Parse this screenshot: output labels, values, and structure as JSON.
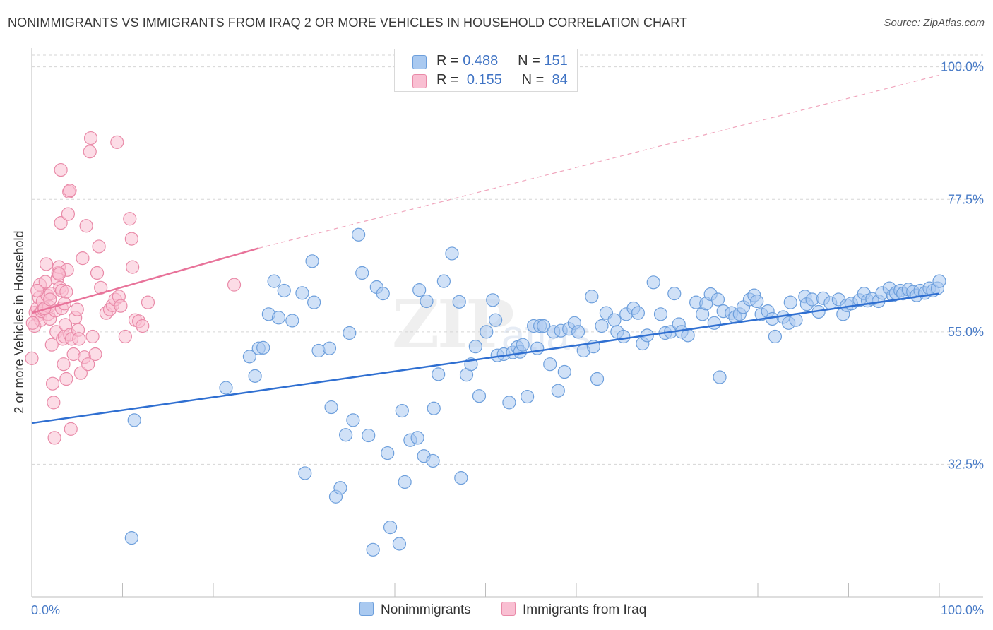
{
  "title": "NONIMMIGRANTS VS IMMIGRANTS FROM IRAQ 2 OR MORE VEHICLES IN HOUSEHOLD CORRELATION CHART",
  "source": "Source: ZipAtlas.com",
  "watermark": "ZIP",
  "watermark2": "atlas",
  "legend_top": {
    "rows": [
      {
        "r_label": "R =",
        "r_value": "0.488",
        "n_label": "N =",
        "n_value": "151",
        "color": "#a9c9f0",
        "border": "#6d9fdc"
      },
      {
        "r_label": "R =",
        "r_value": "0.155",
        "n_label": "N =",
        "n_value": "84",
        "color": "#f9bfd2",
        "border": "#e98aa8"
      }
    ]
  },
  "legend_bottom": [
    {
      "label": "Nonimmigrants",
      "color": "#a9c9f0",
      "border": "#6d9fdc"
    },
    {
      "label": "Immigrants from Iraq",
      "color": "#f9bfd2",
      "border": "#e98aa8"
    }
  ],
  "chart_data": {
    "type": "scatter",
    "title": "NONIMMIGRANTS VS IMMIGRANTS FROM IRAQ 2 OR MORE VEHICLES IN HOUSEHOLD CORRELATION CHART",
    "xlabel": "",
    "ylabel": "2 or more Vehicles in Household",
    "xlim": [
      0,
      100
    ],
    "ylim": [
      10,
      102
    ],
    "x_tick_labels": [
      "0.0%",
      "100.0%"
    ],
    "y_ticks": [
      32.5,
      55.0,
      77.5,
      100.0
    ],
    "y_tick_labels": [
      "32.5%",
      "55.0%",
      "77.5%",
      "100.0%"
    ],
    "grid": "horizontal dashed",
    "legend": "top-center",
    "series": [
      {
        "name": "Nonimmigrants",
        "color": "#6d9fdc",
        "fill": "#a9c9f0",
        "trend": {
          "x0": 0,
          "y0": 39.5,
          "x1": 100,
          "y1": 61.5,
          "style": "solid",
          "color": "#2f6fd1"
        },
        "points": [
          [
            11.3,
            40.0
          ],
          [
            11.0,
            20.0
          ],
          [
            21.4,
            45.5
          ],
          [
            24.0,
            50.8
          ],
          [
            25.0,
            52.2
          ],
          [
            24.6,
            47.5
          ],
          [
            25.5,
            52.3
          ],
          [
            26.1,
            58.0
          ],
          [
            26.7,
            63.6
          ],
          [
            27.2,
            57.4
          ],
          [
            27.8,
            62.0
          ],
          [
            28.7,
            56.9
          ],
          [
            29.8,
            61.6
          ],
          [
            30.1,
            31.0
          ],
          [
            30.9,
            67.0
          ],
          [
            31.1,
            60.0
          ],
          [
            31.6,
            51.8
          ],
          [
            32.8,
            52.2
          ],
          [
            33.0,
            42.2
          ],
          [
            33.5,
            27.0
          ],
          [
            34.0,
            28.5
          ],
          [
            34.6,
            37.5
          ],
          [
            35.0,
            54.8
          ],
          [
            35.4,
            40.0
          ],
          [
            36.0,
            71.5
          ],
          [
            36.4,
            65.0
          ],
          [
            37.1,
            37.4
          ],
          [
            37.6,
            18.0
          ],
          [
            38.0,
            62.6
          ],
          [
            38.7,
            61.5
          ],
          [
            39.2,
            34.4
          ],
          [
            39.5,
            21.8
          ],
          [
            40.5,
            19.0
          ],
          [
            40.8,
            41.6
          ],
          [
            41.1,
            29.5
          ],
          [
            41.7,
            36.6
          ],
          [
            42.5,
            37.0
          ],
          [
            42.7,
            62.1
          ],
          [
            43.2,
            33.9
          ],
          [
            43.5,
            60.2
          ],
          [
            44.2,
            33.1
          ],
          [
            44.3,
            42.0
          ],
          [
            44.8,
            47.8
          ],
          [
            45.4,
            63.6
          ],
          [
            46.3,
            68.3
          ],
          [
            47.1,
            60.1
          ],
          [
            47.3,
            30.2
          ],
          [
            47.9,
            47.7
          ],
          [
            48.4,
            49.5
          ],
          [
            48.9,
            52.5
          ],
          [
            49.3,
            44.1
          ],
          [
            50.1,
            55.0
          ],
          [
            50.8,
            60.4
          ],
          [
            51.1,
            57.0
          ],
          [
            51.3,
            51.0
          ],
          [
            52.0,
            51.2
          ],
          [
            52.6,
            43.0
          ],
          [
            53.0,
            51.5
          ],
          [
            53.5,
            52.4
          ],
          [
            53.8,
            51.6
          ],
          [
            54.1,
            52.8
          ],
          [
            54.6,
            44.0
          ],
          [
            55.3,
            56.0
          ],
          [
            55.7,
            52.2
          ],
          [
            56.0,
            56.0
          ],
          [
            56.4,
            56.0
          ],
          [
            57.1,
            49.5
          ],
          [
            57.5,
            55.0
          ],
          [
            58.0,
            45.0
          ],
          [
            58.3,
            55.2
          ],
          [
            58.7,
            48.2
          ],
          [
            59.2,
            55.5
          ],
          [
            59.8,
            56.5
          ],
          [
            60.2,
            55.0
          ],
          [
            60.8,
            51.8
          ],
          [
            61.7,
            61.0
          ],
          [
            61.9,
            52.5
          ],
          [
            62.3,
            47.0
          ],
          [
            62.8,
            56.0
          ],
          [
            63.3,
            58.2
          ],
          [
            64.2,
            57.0
          ],
          [
            64.5,
            55.0
          ],
          [
            65.2,
            54.2
          ],
          [
            65.5,
            58.0
          ],
          [
            66.3,
            59.0
          ],
          [
            66.8,
            58.2
          ],
          [
            67.3,
            53.0
          ],
          [
            67.8,
            54.4
          ],
          [
            68.5,
            63.4
          ],
          [
            69.3,
            58.0
          ],
          [
            69.8,
            54.8
          ],
          [
            70.4,
            55.0
          ],
          [
            70.8,
            61.5
          ],
          [
            71.3,
            56.3
          ],
          [
            71.6,
            55.0
          ],
          [
            72.3,
            54.4
          ],
          [
            73.2,
            60.0
          ],
          [
            73.9,
            58.0
          ],
          [
            74.3,
            59.8
          ],
          [
            74.8,
            61.4
          ],
          [
            75.2,
            56.5
          ],
          [
            75.6,
            60.5
          ],
          [
            75.8,
            47.3
          ],
          [
            76.2,
            58.5
          ],
          [
            77.1,
            58.2
          ],
          [
            77.5,
            57.5
          ],
          [
            78.0,
            58.0
          ],
          [
            78.4,
            59.2
          ],
          [
            79.1,
            60.5
          ],
          [
            79.6,
            61.2
          ],
          [
            79.9,
            60.2
          ],
          [
            80.4,
            58.0
          ],
          [
            81.1,
            58.5
          ],
          [
            81.6,
            57.2
          ],
          [
            81.9,
            54.2
          ],
          [
            82.8,
            57.5
          ],
          [
            83.4,
            56.5
          ],
          [
            83.6,
            60.0
          ],
          [
            84.2,
            57.0
          ],
          [
            85.2,
            61.0
          ],
          [
            85.4,
            59.7
          ],
          [
            86.0,
            60.5
          ],
          [
            86.7,
            58.4
          ],
          [
            87.2,
            60.7
          ],
          [
            88.0,
            59.9
          ],
          [
            88.9,
            60.5
          ],
          [
            89.4,
            58.0
          ],
          [
            89.8,
            59.5
          ],
          [
            90.3,
            59.8
          ],
          [
            91.2,
            60.4
          ],
          [
            91.7,
            61.5
          ],
          [
            92.1,
            60.3
          ],
          [
            92.6,
            60.6
          ],
          [
            93.3,
            60.2
          ],
          [
            93.7,
            61.6
          ],
          [
            94.5,
            62.4
          ],
          [
            94.9,
            61.2
          ],
          [
            95.2,
            61.6
          ],
          [
            95.7,
            62.0
          ],
          [
            96.0,
            61.5
          ],
          [
            96.6,
            62.2
          ],
          [
            97.1,
            61.8
          ],
          [
            97.5,
            61.2
          ],
          [
            97.9,
            62.0
          ],
          [
            98.4,
            61.6
          ],
          [
            98.9,
            62.4
          ],
          [
            99.3,
            62.0
          ],
          [
            99.8,
            62.4
          ],
          [
            100.0,
            63.6
          ]
        ]
      },
      {
        "name": "Immigrants from Iraq",
        "color": "#e98aa8",
        "fill": "#f9bfd2",
        "trend": {
          "x0": 0,
          "y0": 58.2,
          "x1": 25,
          "y1": 69.2,
          "x_ext": 100,
          "y_ext": 98.6,
          "style": "solid-then-dashed",
          "color": "#e8739a"
        },
        "points": [
          [
            0.0,
            50.5
          ],
          [
            0.3,
            56.0
          ],
          [
            0.4,
            58.3
          ],
          [
            0.6,
            59.0
          ],
          [
            0.7,
            57.8
          ],
          [
            0.8,
            60.8
          ],
          [
            0.9,
            63.0
          ],
          [
            1.0,
            57.0
          ],
          [
            1.1,
            58.5
          ],
          [
            1.2,
            60.2
          ],
          [
            1.3,
            58.8
          ],
          [
            1.5,
            63.5
          ],
          [
            1.6,
            66.5
          ],
          [
            1.7,
            61.2
          ],
          [
            1.8,
            58.0
          ],
          [
            1.9,
            59.3
          ],
          [
            2.0,
            57.2
          ],
          [
            2.1,
            61.5
          ],
          [
            2.2,
            52.8
          ],
          [
            2.3,
            46.2
          ],
          [
            2.4,
            43.0
          ],
          [
            2.5,
            37.0
          ],
          [
            2.6,
            58.6
          ],
          [
            2.7,
            55.0
          ],
          [
            2.8,
            64.0
          ],
          [
            2.9,
            65.0
          ],
          [
            3.0,
            66.0
          ],
          [
            3.1,
            62.5
          ],
          [
            3.2,
            73.5
          ],
          [
            3.3,
            59.0
          ],
          [
            3.4,
            53.8
          ],
          [
            3.5,
            49.5
          ],
          [
            3.6,
            54.2
          ],
          [
            3.7,
            56.2
          ],
          [
            3.8,
            47.0
          ],
          [
            3.9,
            65.5
          ],
          [
            4.0,
            75.0
          ],
          [
            4.1,
            78.8
          ],
          [
            4.2,
            79.0
          ],
          [
            3.2,
            82.5
          ],
          [
            3.0,
            64.8
          ],
          [
            3.3,
            62.0
          ],
          [
            3.6,
            59.8
          ],
          [
            3.8,
            61.8
          ],
          [
            4.2,
            54.5
          ],
          [
            4.3,
            38.5
          ],
          [
            4.4,
            53.8
          ],
          [
            4.6,
            51.2
          ],
          [
            4.8,
            57.4
          ],
          [
            5.0,
            58.8
          ],
          [
            5.1,
            55.3
          ],
          [
            5.2,
            53.8
          ],
          [
            5.4,
            48.0
          ],
          [
            5.6,
            67.5
          ],
          [
            5.8,
            50.7
          ],
          [
            6.0,
            73.0
          ],
          [
            6.2,
            49.5
          ],
          [
            6.4,
            85.6
          ],
          [
            6.5,
            87.9
          ],
          [
            6.7,
            54.2
          ],
          [
            7.0,
            51.2
          ],
          [
            7.2,
            65.0
          ],
          [
            7.4,
            69.5
          ],
          [
            7.6,
            62.5
          ],
          [
            8.2,
            58.2
          ],
          [
            8.6,
            58.8
          ],
          [
            8.9,
            59.5
          ],
          [
            9.2,
            60.5
          ],
          [
            9.6,
            61.0
          ],
          [
            9.4,
            87.2
          ],
          [
            9.8,
            59.4
          ],
          [
            10.3,
            54.2
          ],
          [
            10.8,
            74.2
          ],
          [
            11.0,
            70.8
          ],
          [
            11.1,
            66.0
          ],
          [
            11.4,
            57.0
          ],
          [
            11.8,
            56.8
          ],
          [
            12.2,
            56.0
          ],
          [
            12.8,
            60.0
          ],
          [
            22.3,
            63.0
          ],
          [
            0.1,
            56.5
          ],
          [
            1.4,
            59.0
          ],
          [
            2.0,
            60.5
          ],
          [
            0.6,
            62.0
          ]
        ]
      }
    ]
  }
}
